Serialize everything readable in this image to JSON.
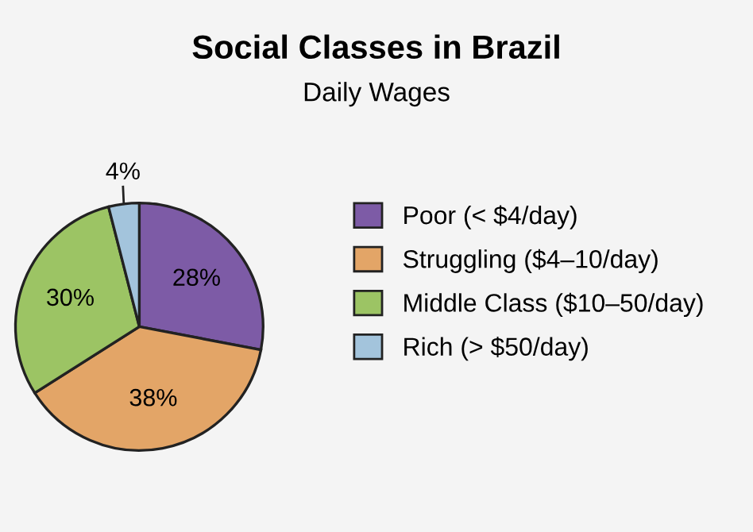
{
  "chart_data": {
    "type": "pie",
    "title": "Social Classes in Brazil",
    "subtitle": "Daily Wages",
    "categories": [
      "Poor (< $4/day)",
      "Struggling ($4–10/day)",
      "Middle Class ($10–50/day)",
      "Rich (> $50/day)"
    ],
    "values": [
      28,
      38,
      30,
      4
    ],
    "colors": [
      "#7d5ba6",
      "#e3a567",
      "#9cc464",
      "#a3c4dc"
    ],
    "value_labels": [
      "28%",
      "38%",
      "30%",
      "4%"
    ],
    "legend": "right"
  }
}
